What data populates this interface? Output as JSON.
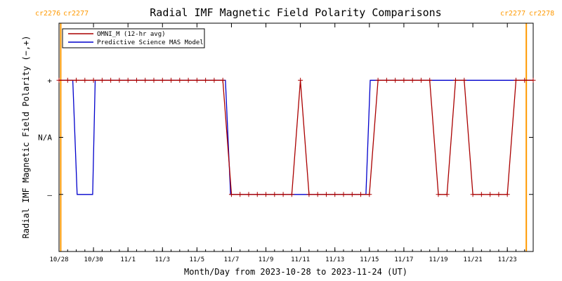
{
  "chart_data": {
    "type": "line",
    "title": "Radial IMF Magnetic Field Polarity Comparisons",
    "xlabel": "Month/Day from 2023-10-28 to 2023-11-24 (UT)",
    "ylabel": "Radial IMF Magnetic Field Polarity (−,+)",
    "x_start": "2023-10-28",
    "x_end": "2023-11-24",
    "xlim_days": [
      0,
      27.5
    ],
    "ylim": [
      -2,
      2
    ],
    "ytick_values": [
      1,
      0,
      -1
    ],
    "ytick_labels": [
      "+",
      "N/A",
      "–"
    ],
    "xtick_days": [
      0,
      2,
      4,
      6,
      8,
      10,
      12,
      14,
      16,
      18,
      20,
      22,
      24,
      26
    ],
    "xtick_labels": [
      "10/28",
      "10/30",
      "11/1",
      "11/3",
      "11/5",
      "11/7",
      "11/9",
      "11/11",
      "11/13",
      "11/15",
      "11/17",
      "11/19",
      "11/21",
      "11/23"
    ],
    "carrington": {
      "left": [
        "cr2276",
        "cr2277"
      ],
      "right": [
        "cr2277",
        "cr2278"
      ],
      "boundary_days": [
        0.1,
        27.1
      ],
      "color": "#ff9900"
    },
    "legend": {
      "placement": "top-left",
      "entries": [
        {
          "label": "OMNI_M (12-hr avg)",
          "color": "#aa0000"
        },
        {
          "label": "Predictive Science MAS Model",
          "color": "#0000cc"
        }
      ]
    },
    "series": [
      {
        "name": "OMNI_M (12-hr avg)",
        "color": "#aa0000",
        "markers": true,
        "x": [
          0,
          0.5,
          1,
          1.5,
          2,
          2.5,
          3,
          3.5,
          4,
          4.5,
          5,
          5.5,
          6,
          6.5,
          7,
          7.5,
          8,
          8.5,
          9,
          9.5,
          10,
          10.5,
          11,
          11.5,
          12,
          12.5,
          13,
          13.5,
          14,
          14.5,
          15,
          15.5,
          16,
          16.5,
          17,
          17.5,
          18,
          18.5,
          19,
          19.5,
          20,
          20.5,
          21,
          21.5,
          22,
          22.5,
          23,
          23.5,
          24,
          24.5,
          25,
          25.5,
          26,
          26.5,
          27,
          27.5
        ],
        "y": [
          1,
          1,
          1,
          1,
          1,
          1,
          1,
          1,
          1,
          1,
          1,
          1,
          1,
          1,
          1,
          1,
          1,
          1,
          1,
          1,
          -1,
          -1,
          -1,
          -1,
          -1,
          -1,
          -1,
          -1,
          1,
          -1,
          -1,
          -1,
          -1,
          -1,
          -1,
          -1,
          -1,
          1,
          1,
          1,
          1,
          1,
          1,
          1,
          -1,
          -1,
          1,
          1,
          -1,
          -1,
          -1,
          -1,
          -1,
          1,
          1,
          1
        ]
      },
      {
        "name": "Predictive Science MAS Model",
        "color": "#0000cc",
        "markers": false,
        "x": [
          0,
          0.8,
          1.05,
          1.95,
          2.1,
          9.65,
          9.95,
          17.8,
          18.05,
          27.5
        ],
        "y": [
          1,
          1,
          -1,
          -1,
          1,
          1,
          -1,
          -1,
          1,
          1
        ]
      }
    ]
  }
}
